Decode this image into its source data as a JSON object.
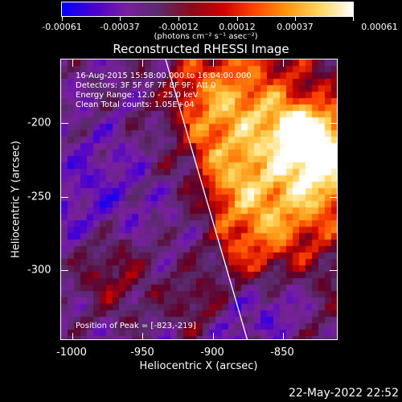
{
  "colorbar": {
    "tick_labels": [
      "-0.00061",
      "-0.00037",
      "-0.00012",
      "0.00012",
      "0.00037",
      "0.00061"
    ],
    "units": "(photons cm⁻² s⁻¹ asec⁻²)",
    "colormap": [
      "#0000ff",
      "#4a00d0",
      "#7a1fa0",
      "#5a2a6a",
      "#8a0a1a",
      "#d00000",
      "#ff4a00",
      "#ff9a10",
      "#ffd860",
      "#ffffff"
    ]
  },
  "plot": {
    "title": "Reconstructed RHESSI Image",
    "info": {
      "time_range": "16-Aug-2015 15:58:00.000 to 16:04:00.000",
      "detectors": "Detectors: 3F 5F 6F 7F 8F 9F; Att 0",
      "energy": "Energy Range: 12.0 - 25.0 keV",
      "method": "Clean    Total counts: 1.05E+04"
    },
    "peak_text": "Position of Peak = [-823,-219]",
    "x_axis": {
      "title": "Heliocentric X (arcsec)",
      "ticks": [
        "-1000",
        "-950",
        "-900",
        "-850"
      ]
    },
    "y_axis": {
      "title": "Heliocentric Y (arcsec)",
      "ticks": [
        "-200",
        "-250",
        "-300"
      ]
    }
  },
  "footer": {
    "timestamp": "22-May-2022 22:52"
  }
}
